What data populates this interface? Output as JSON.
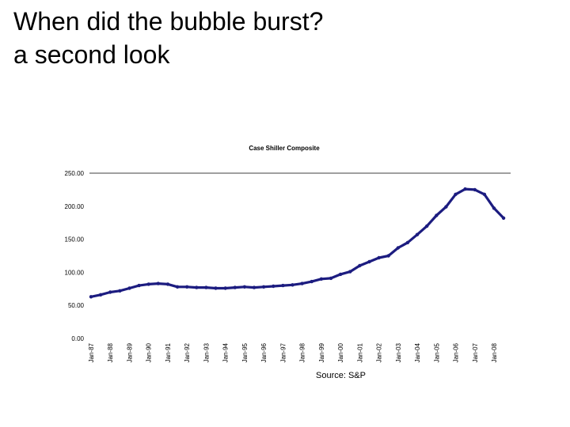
{
  "slide": {
    "title_line1": "When did the bubble burst?",
    "title_line2": "a second look",
    "source": "Source: S&P"
  },
  "colors": {
    "series": "#1c1c80",
    "grid": "#000000",
    "text": "#000000",
    "background": "#ffffff"
  },
  "chart_data": {
    "type": "line",
    "title": "Case Shiller Composite",
    "xlabel": "",
    "ylabel": "",
    "ylim": [
      0,
      250
    ],
    "y_ticks": [
      0,
      50,
      100,
      150,
      200,
      250
    ],
    "y_tick_labels": [
      "0.00",
      "50.00",
      "100.00",
      "150.00",
      "200.00",
      "250.00"
    ],
    "x_tick_labels": [
      "Jan-87",
      "Jan-88",
      "Jan-89",
      "Jan-90",
      "Jan-91",
      "Jan-92",
      "Jan-93",
      "Jan-94",
      "Jan-95",
      "Jan-96",
      "Jan-97",
      "Jan-98",
      "Jan-99",
      "Jan-00",
      "Jan-01",
      "Jan-02",
      "Jan-03",
      "Jan-04",
      "Jan-05",
      "Jan-06",
      "Jan-07",
      "Jan-08"
    ],
    "x_tick_labels_fixed": [
      "Jan-87",
      "Jan-88",
      "Jan-89",
      "Jan-90",
      "Jan-91",
      "Jan-92",
      "Jan-93",
      "Jan-94",
      "Jan-95 -",
      "Jan-96 -",
      "Jan-97 -",
      "Jan-98",
      "Jan-99",
      "Jan-00",
      "Jan-01",
      "Jan-02",
      "Jan-03",
      "Jan-04",
      "Jan-05",
      "Jan-06",
      "Jan-07",
      "Jan-08"
    ],
    "grid": "top line only",
    "legend": "none",
    "series": [
      {
        "x": [
          "1987-01",
          "1987-07",
          "1988-01",
          "1988-07",
          "1989-01",
          "1989-07",
          "1990-01",
          "1990-07",
          "1991-01",
          "1991-07",
          "1992-01",
          "1992-07",
          "1993-01",
          "1993-07",
          "1994-01",
          "1994-07",
          "1995-01",
          "1995-07",
          "1996-01",
          "1996-07",
          "1997-01",
          "1997-07",
          "1998-01",
          "1998-07",
          "1999-01",
          "1999-07",
          "2000-01",
          "2000-07",
          "2001-01",
          "2001-07",
          "2002-01",
          "2002-07",
          "2003-01",
          "2003-07",
          "2004-01",
          "2004-07",
          "2005-01",
          "2005-07",
          "2006-01",
          "2006-07",
          "2007-01",
          "2007-07",
          "2008-01",
          "2008-07"
        ],
        "values": [
          63,
          66,
          70,
          72,
          76,
          80,
          82,
          83,
          82,
          78,
          78,
          77,
          77,
          76,
          76,
          77,
          78,
          77,
          78,
          79,
          80,
          81,
          83,
          86,
          90,
          91,
          97,
          101,
          110,
          116,
          122,
          125,
          137,
          145,
          157,
          170,
          186,
          199,
          218,
          226,
          225,
          218,
          197,
          182
        ]
      }
    ]
  }
}
